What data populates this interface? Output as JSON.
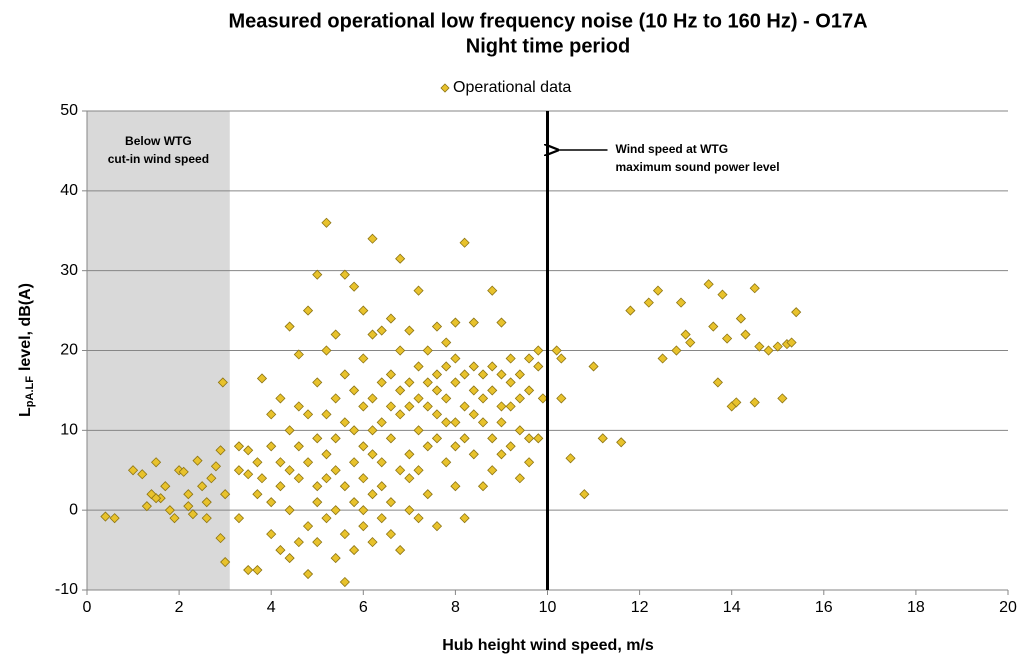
{
  "chart_data": {
    "type": "scatter",
    "title": "Measured operational low frequency noise (10 Hz to 160 Hz) - O17A",
    "subtitle": "Night time period",
    "xlabel": "Hub height wind speed, m/s",
    "ylabel": {
      "main": "L",
      "sub": "pA.LF",
      "rest": "level, dB(A)"
    },
    "annotations": [
      "Below WTG",
      "cut-in wind speed",
      "Wind speed at WTG",
      "maximum sound power level"
    ],
    "shaded_region": [
      0,
      3.1
    ],
    "vline": 10,
    "xlim": [
      0,
      20
    ],
    "ylim": [
      -10,
      50
    ],
    "xticks": [
      0,
      2,
      4,
      6,
      8,
      10,
      12,
      14,
      16,
      18,
      20
    ],
    "yticks": [
      -10,
      0,
      10,
      20,
      30,
      40,
      50
    ],
    "grid": true,
    "series": [
      {
        "name": "Operational data",
        "color": "#e8c22c",
        "x": [
          0.4,
          0.6,
          1,
          1.2,
          1.3,
          1.4,
          1.5,
          1.6,
          1.7,
          1.8,
          1.9,
          2,
          2.1,
          2.2,
          2.3,
          2.4,
          2.5,
          2.6,
          2.7,
          2.8,
          2.9,
          2.9,
          3,
          3,
          2.95,
          2.2,
          1.5,
          2.6,
          3.3,
          3.3,
          3.3,
          3.5,
          3.5,
          3.5,
          3.7,
          3.7,
          3.7,
          3.8,
          3.8,
          4,
          4,
          4,
          4,
          4.2,
          4.2,
          4.2,
          4.2,
          4.4,
          4.4,
          4.4,
          4.4,
          4.4,
          4.6,
          4.6,
          4.6,
          4.6,
          4.6,
          4.8,
          4.8,
          4.8,
          4.8,
          4.8,
          5,
          5,
          5,
          5,
          5,
          5,
          5.2,
          5.2,
          5.2,
          5.2,
          5.2,
          5.2,
          5.4,
          5.4,
          5.4,
          5.4,
          5.4,
          5.4,
          5.6,
          5.6,
          5.6,
          5.6,
          5.6,
          5.6,
          5.8,
          5.8,
          5.8,
          5.8,
          5.8,
          5.8,
          6,
          6,
          6,
          6,
          6,
          6,
          6,
          6.2,
          6.2,
          6.2,
          6.2,
          6.2,
          6.2,
          6.2,
          6.4,
          6.4,
          6.4,
          6.4,
          6.4,
          6.4,
          6.6,
          6.6,
          6.6,
          6.6,
          6.6,
          6.6,
          6.8,
          6.8,
          6.8,
          6.8,
          6.8,
          6.8,
          7,
          7,
          7,
          7,
          7,
          7,
          7.2,
          7.2,
          7.2,
          7.2,
          7.2,
          7.2,
          7.4,
          7.4,
          7.4,
          7.4,
          7.4,
          7.6,
          7.6,
          7.6,
          7.6,
          7.6,
          7.6,
          7.8,
          7.8,
          7.8,
          7.8,
          7.8,
          8,
          8,
          8,
          8,
          8,
          8,
          8.2,
          8.2,
          8.2,
          8.2,
          8.2,
          8.4,
          8.4,
          8.4,
          8.4,
          8.4,
          8.6,
          8.6,
          8.6,
          8.6,
          8.8,
          8.8,
          8.8,
          8.8,
          8.8,
          9,
          9,
          9,
          9,
          9,
          9.2,
          9.2,
          9.2,
          9.2,
          9.4,
          9.4,
          9.4,
          9.4,
          9.6,
          9.6,
          9.6,
          9.6,
          9.8,
          9.8,
          9.8,
          10.2,
          10.3,
          10.5,
          10.8,
          11,
          11.2,
          11.6,
          11.8,
          12.2,
          12.4,
          12.5,
          12.8,
          13,
          13.1,
          13.5,
          13.6,
          13.7,
          13.9,
          14,
          14.2,
          14.3,
          14.5,
          14.6,
          14.8,
          15,
          15.1,
          15.2,
          15.4,
          14.5,
          14.1,
          12.9,
          13.8,
          15.3,
          9.9,
          10.3
        ],
        "values": [
          -0.8,
          -1,
          5,
          4.5,
          0.5,
          2,
          6,
          1.5,
          3,
          0,
          -1,
          5,
          4.8,
          2,
          -0.5,
          6.2,
          3,
          1,
          4,
          5.5,
          7.5,
          -3.5,
          2,
          -6.5,
          16,
          0.5,
          1.5,
          -1,
          5,
          -1,
          8,
          4.5,
          7.5,
          -7.5,
          6,
          2,
          -7.5,
          16.5,
          4,
          -3,
          8,
          1,
          12,
          3,
          -5,
          14,
          6,
          10,
          0,
          -6,
          23,
          5,
          19.5,
          4,
          -4,
          13,
          8,
          25,
          12,
          -2,
          6,
          -8,
          29.5,
          9,
          3,
          16,
          -4,
          1,
          36,
          20,
          7,
          -1,
          12,
          4,
          14,
          22,
          0,
          -6,
          9,
          5,
          29.5,
          17,
          3,
          -3,
          11,
          -9,
          28,
          10,
          1,
          6,
          -5,
          15,
          25,
          19,
          4,
          -2,
          8,
          13,
          0,
          34,
          14,
          2,
          7,
          -4,
          22,
          10,
          22.5,
          11,
          3,
          16,
          -1,
          6,
          24,
          17,
          1,
          9,
          -3,
          13,
          31.5,
          20,
          12,
          5,
          -5,
          15,
          22.5,
          16,
          7,
          13,
          0,
          4,
          27.5,
          18,
          10,
          -1,
          14,
          5,
          20,
          13,
          2,
          16,
          8,
          23,
          17,
          12,
          9,
          -2,
          15,
          21,
          14,
          6,
          18,
          11,
          23.5,
          16,
          11,
          3,
          19,
          8,
          33.5,
          13,
          17,
          -1,
          9,
          23.5,
          15,
          7,
          18,
          12,
          17,
          11,
          3,
          14,
          27.5,
          18,
          9,
          15,
          5,
          23.5,
          13,
          17,
          7,
          11,
          19,
          13,
          8,
          16,
          17,
          10,
          4,
          14,
          19,
          9,
          15,
          6,
          20,
          9,
          18,
          20,
          19,
          6.5,
          2,
          18,
          9,
          8.5,
          25,
          26,
          27.5,
          19,
          20,
          22,
          21,
          28.3,
          23,
          16,
          21.5,
          13,
          24,
          22,
          27.8,
          20.5,
          20,
          20.5,
          14,
          20.8,
          24.8,
          13.5,
          13.5,
          26,
          27,
          21,
          14,
          14
        ]
      }
    ]
  }
}
